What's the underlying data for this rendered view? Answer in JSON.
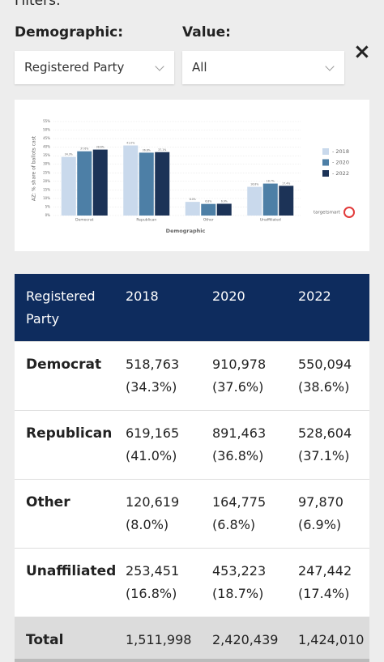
{
  "filters": {
    "title": "Filters:",
    "demographic_label": "Demographic:",
    "demographic_value": "Registered Party",
    "value_label": "Value:",
    "value_value": "All",
    "close": "×"
  },
  "chart_data": {
    "type": "bar",
    "ylabel": "AZ: % share of ballots cast",
    "xlabel": "Demographic",
    "logo": "targetsmart",
    "categories": [
      "Democrat",
      "Republican",
      "Other",
      "Unaffiliated"
    ],
    "series": [
      {
        "name": "- 2018",
        "color": "#c9d9ec",
        "values": [
          34.3,
          41.0,
          8.0,
          16.8
        ],
        "value_labels": [
          "34.3%",
          "41.0%",
          "8.0%",
          "16.8%"
        ]
      },
      {
        "name": "- 2020",
        "color": "#4d7fa6",
        "values": [
          37.6,
          36.8,
          6.8,
          18.7
        ],
        "value_labels": [
          "37.6%",
          "36.8%",
          "6.8%",
          "18.7%"
        ]
      },
      {
        "name": "- 2022",
        "color": "#1c3357",
        "values": [
          38.6,
          37.1,
          6.9,
          17.4
        ],
        "value_labels": [
          "38.6%",
          "37.1%",
          "6.9%",
          "17.4%"
        ]
      }
    ],
    "ylim": [
      0,
      55
    ],
    "yticks": [
      {
        "value": 0,
        "label": "0%"
      },
      {
        "value": 5,
        "label": "5%"
      },
      {
        "value": 10,
        "label": "10%"
      },
      {
        "value": 15,
        "label": "15%"
      },
      {
        "value": 20,
        "label": "20%"
      },
      {
        "value": 25,
        "label": "25%"
      },
      {
        "value": 30,
        "label": "30%"
      },
      {
        "value": 35,
        "label": "35%"
      },
      {
        "value": 40,
        "label": "40%"
      },
      {
        "value": 45,
        "label": "45%"
      },
      {
        "value": 50,
        "label": "50%"
      },
      {
        "value": 55,
        "label": "55%"
      }
    ],
    "grid": true
  },
  "table": {
    "header": [
      "Registered Party",
      "2018",
      "2020",
      "2022"
    ],
    "rows": [
      [
        "Democrat",
        [
          "518,763",
          "(34.3%)"
        ],
        [
          "910,978",
          "(37.6%)"
        ],
        [
          "550,094",
          "(38.6%)"
        ]
      ],
      [
        "Republican",
        [
          "619,165",
          "(41.0%)"
        ],
        [
          "891,463",
          "(36.8%)"
        ],
        [
          "528,604",
          "(37.1%)"
        ]
      ],
      [
        "Other",
        [
          "120,619",
          "(8.0%)"
        ],
        [
          "164,775",
          "(6.8%)"
        ],
        [
          "97,870",
          "(6.9%)"
        ]
      ],
      [
        "Unaffiliated",
        [
          "253,451",
          "(16.8%)"
        ],
        [
          "453,223",
          "(18.7%)"
        ],
        [
          "247,442",
          "(17.4%)"
        ]
      ]
    ],
    "total": [
      "Total",
      "1,511,998",
      "2,420,439",
      "1,424,010"
    ]
  }
}
